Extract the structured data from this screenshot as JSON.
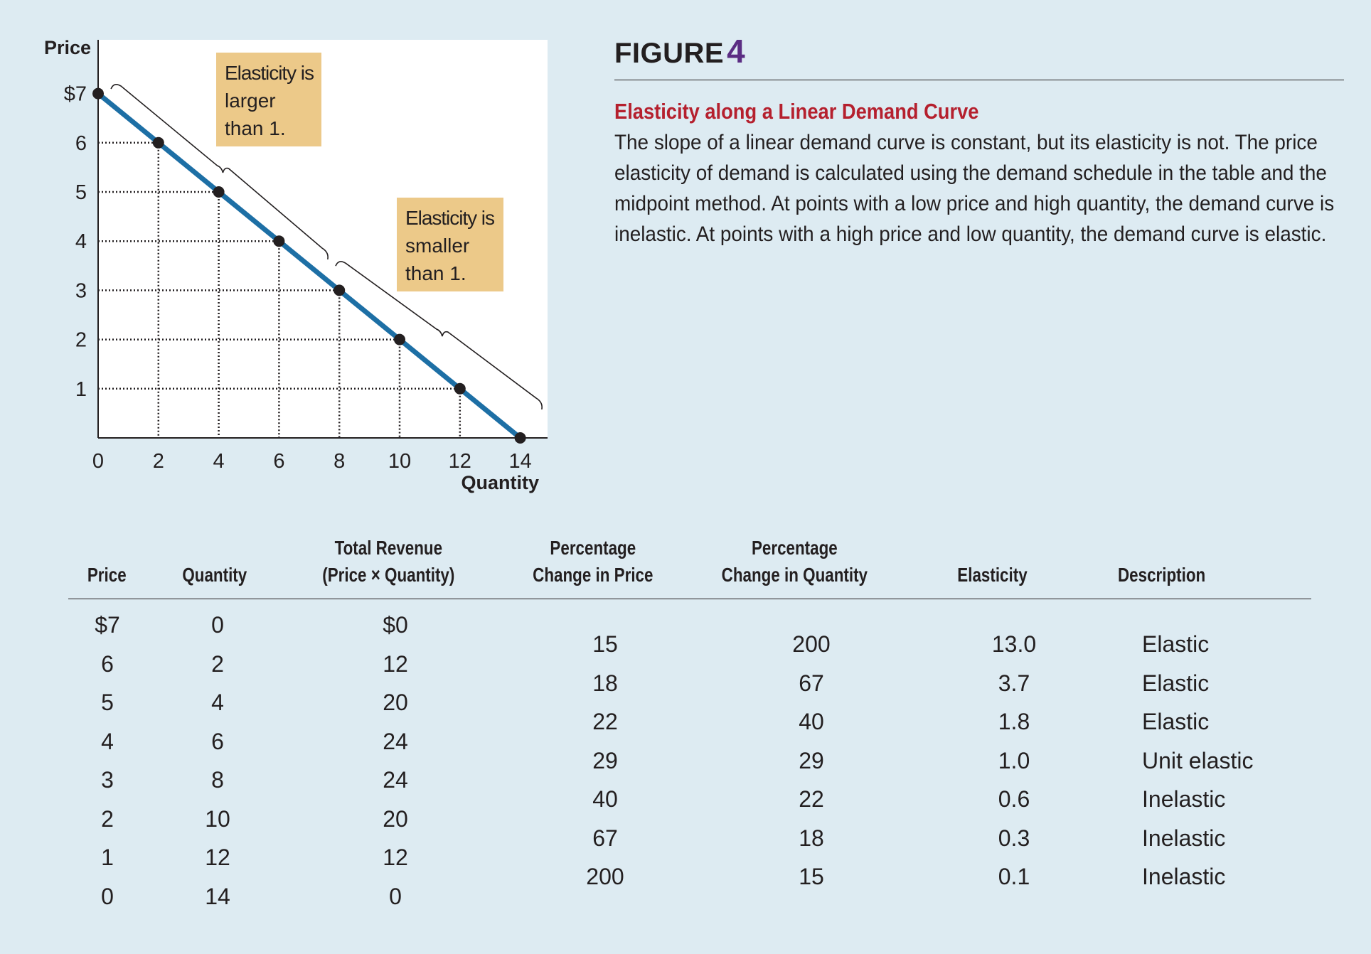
{
  "chart_data": {
    "type": "line",
    "ylabel": "Price",
    "xlabel": "Quantity",
    "xlim": [
      0,
      14
    ],
    "ylim": [
      0,
      7
    ],
    "x_ticks": [
      "0",
      "2",
      "4",
      "6",
      "8",
      "10",
      "12",
      "14"
    ],
    "y_ticks": [
      "$7",
      "6",
      "5",
      "4",
      "3",
      "2",
      "1"
    ],
    "series": [
      {
        "points": [
          [
            0,
            7
          ],
          [
            2,
            6
          ],
          [
            4,
            5
          ],
          [
            6,
            4
          ],
          [
            8,
            3
          ],
          [
            10,
            2
          ],
          [
            12,
            1
          ],
          [
            14,
            0
          ]
        ],
        "color": "#1d6fa5"
      }
    ],
    "annotations": [
      {
        "text_lines": [
          "Elasticity is",
          "larger",
          "than 1."
        ]
      },
      {
        "text_lines": [
          "Elasticity is",
          "smaller",
          "than 1."
        ]
      }
    ],
    "annotation_color": "#ecc989"
  },
  "figure": {
    "heading": "FIGURE",
    "number": "4",
    "title": "Elasticity along a Linear Demand Curve",
    "caption": "The slope of a linear demand curve is constant, but its elasticity is not. The price elasticity of demand is calculated using the demand schedule in the table and the midpoint method. At points with a low price and high quantity, the demand curve is inelastic. At points with a high price and low quantity, the demand curve is elastic."
  },
  "table": {
    "headers": {
      "price": "Price",
      "quantity": "Quantity",
      "revenue_line1": "Total Revenue",
      "revenue_line2": "(Price × Quantity)",
      "pct_price_line1": "Percentage",
      "pct_price_line2": "Change in Price",
      "pct_qty_line1": "Percentage",
      "pct_qty_line2": "Change in Quantity",
      "elasticity": "Elasticity",
      "description": "Description"
    },
    "schedule": [
      {
        "price": "$7",
        "quantity": "0",
        "revenue": "$0"
      },
      {
        "price": "6",
        "quantity": "2",
        "revenue": "12"
      },
      {
        "price": "5",
        "quantity": "4",
        "revenue": "20"
      },
      {
        "price": "4",
        "quantity": "6",
        "revenue": "24"
      },
      {
        "price": "3",
        "quantity": "8",
        "revenue": "24"
      },
      {
        "price": "2",
        "quantity": "10",
        "revenue": "20"
      },
      {
        "price": "1",
        "quantity": "12",
        "revenue": "12"
      },
      {
        "price": "0",
        "quantity": "14",
        "revenue": "0"
      }
    ],
    "changes": [
      {
        "pct_price": "15",
        "pct_qty": "200",
        "elasticity": "13.0",
        "description": "Elastic"
      },
      {
        "pct_price": "18",
        "pct_qty": "67",
        "elasticity": "3.7",
        "description": "Elastic"
      },
      {
        "pct_price": "22",
        "pct_qty": "40",
        "elasticity": "1.8",
        "description": "Elastic"
      },
      {
        "pct_price": "29",
        "pct_qty": "29",
        "elasticity": "1.0",
        "description": "Unit elastic"
      },
      {
        "pct_price": "40",
        "pct_qty": "22",
        "elasticity": "0.6",
        "description": "Inelastic"
      },
      {
        "pct_price": "67",
        "pct_qty": "18",
        "elasticity": "0.3",
        "description": "Inelastic"
      },
      {
        "pct_price": "200",
        "pct_qty": "15",
        "elasticity": "0.1",
        "description": "Inelastic"
      }
    ]
  }
}
